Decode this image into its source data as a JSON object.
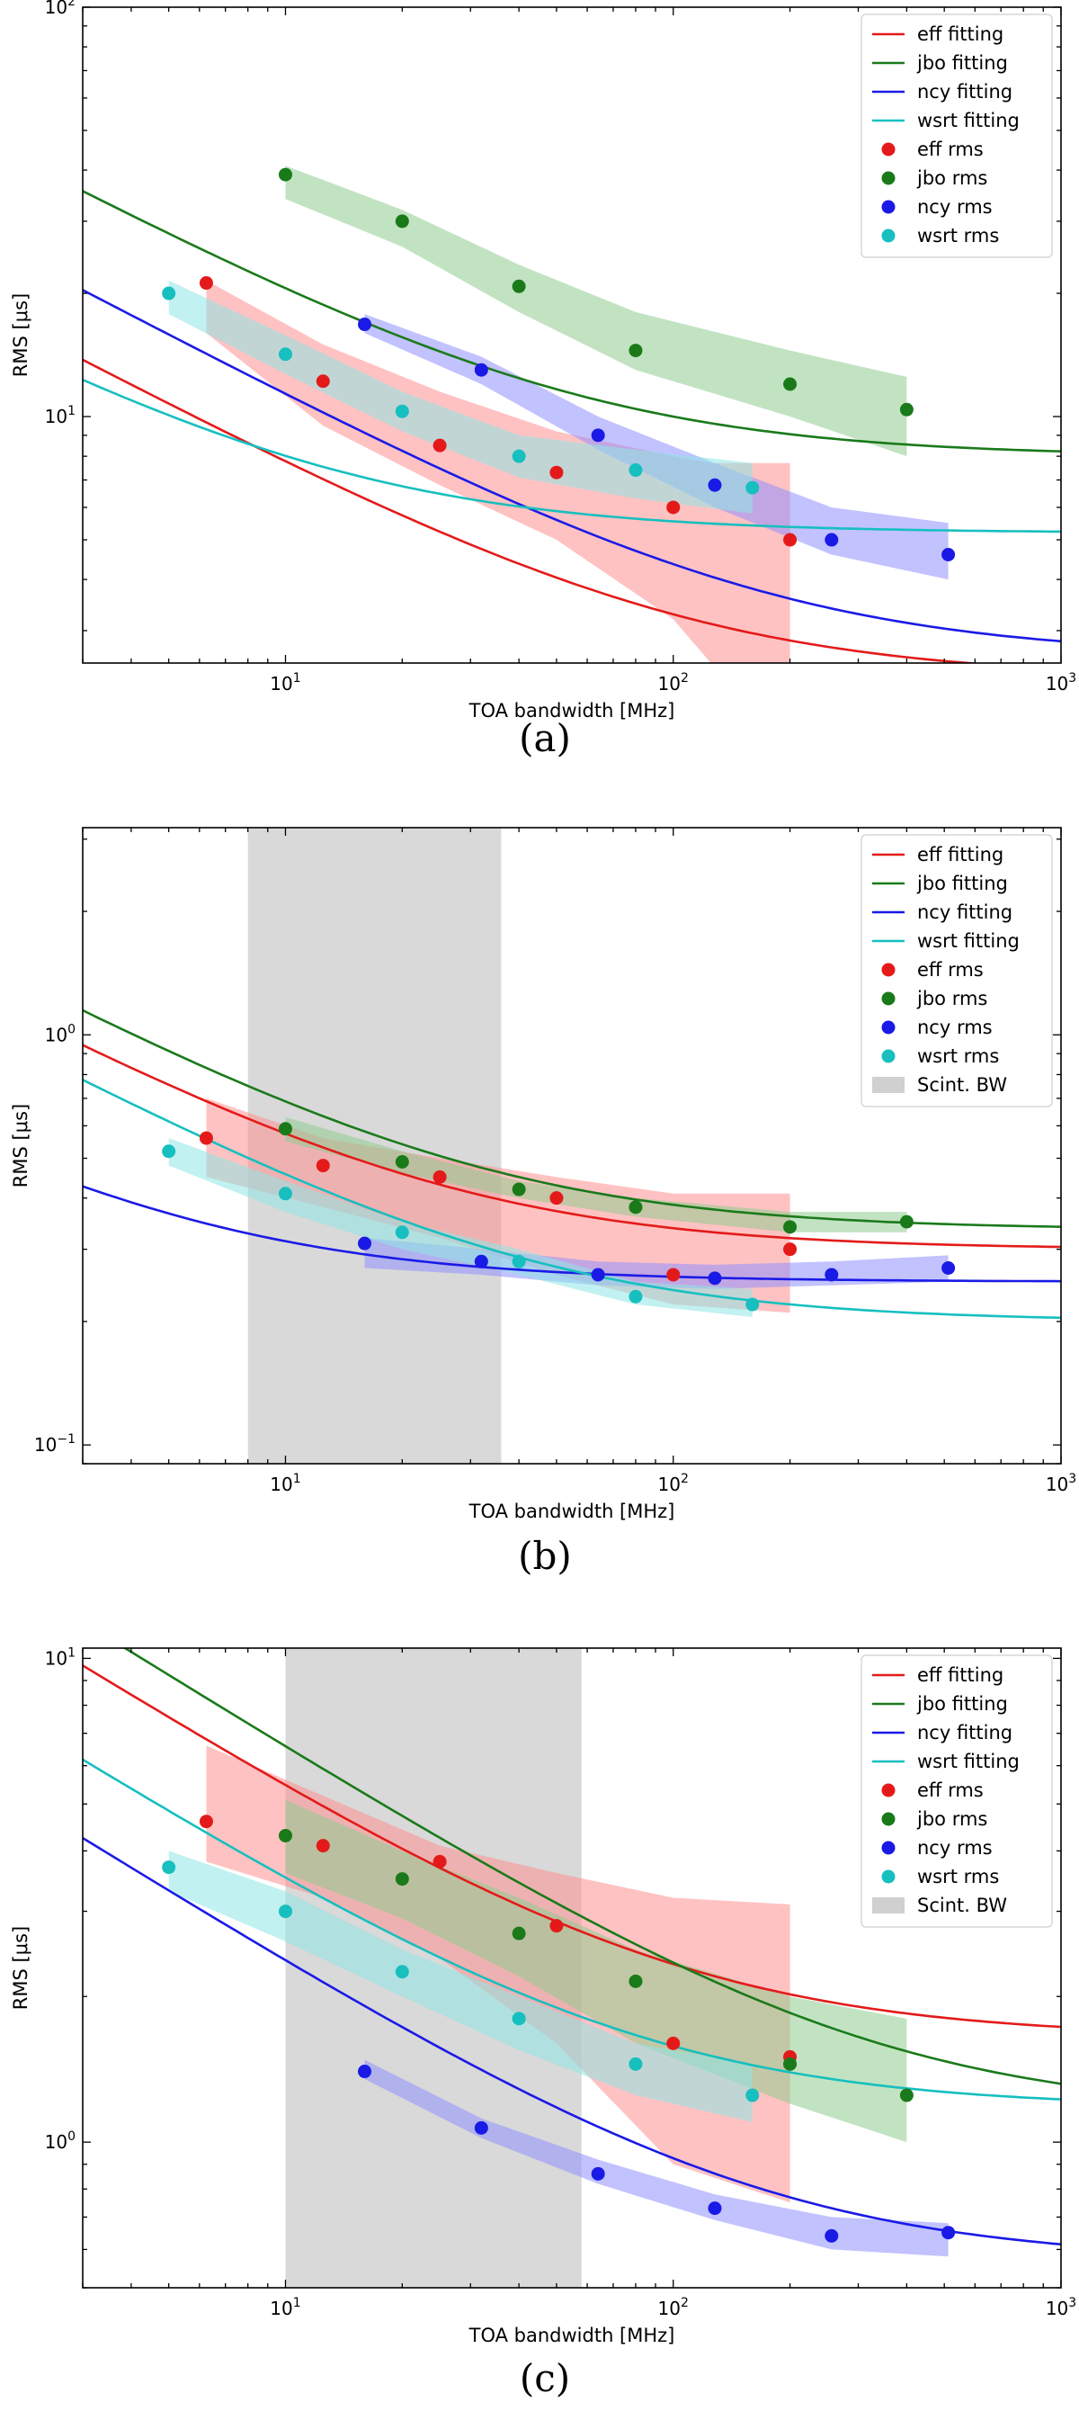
{
  "figure": {
    "colors": {
      "eff": "#e41a1a",
      "jbo": "#1a7a1a",
      "ncy": "#1a1ae6",
      "wsrt": "#17bfbf",
      "eff_fill": "#ff9090",
      "jbo_fill": "#90cc90",
      "ncy_fill": "#9090ff",
      "wsrt_fill": "#90e6e6",
      "scint": "#d0d0d0"
    }
  },
  "chart_data": [
    {
      "panel": "a",
      "caption": "(a)",
      "type": "scatter",
      "xscale": "log",
      "yscale": "log",
      "xlim": [
        3,
        1000
      ],
      "ylim": [
        2.5,
        100
      ],
      "xlabel": "TOA bandwidth [MHz]",
      "ylabel": "RMS [μs]",
      "xticks": [
        {
          "v": 10,
          "b": "10",
          "e": "1"
        },
        {
          "v": 100,
          "b": "10",
          "e": "2"
        },
        {
          "v": 1000,
          "b": "10",
          "e": "3"
        }
      ],
      "yticks": [
        {
          "v": 10,
          "b": "10",
          "e": "1"
        },
        {
          "v": 100,
          "b": "10",
          "e": "2"
        }
      ],
      "legend_position": "top-right",
      "legend": [
        "eff fitting",
        "jbo fitting",
        "ncy fitting",
        "wsrt fitting",
        "eff rms",
        "jbo rms",
        "ncy rms",
        "wsrt rms"
      ],
      "scint_band": null,
      "series": [
        {
          "name": "eff",
          "x": [
            6.25,
            12.5,
            25,
            50,
            100,
            200
          ],
          "y": [
            21.2,
            12.2,
            8.5,
            7.3,
            6.0,
            5.0
          ],
          "band": {
            "x": [
              6.25,
              12.5,
              25,
              50,
              100,
              125,
              200
            ],
            "lo": [
              16.0,
              9.5,
              6.8,
              5.0,
              3.2,
              2.5,
              2.5
            ],
            "hi": [
              21.5,
              15.0,
              11.5,
              9.2,
              8.0,
              7.7,
              7.7
            ]
          },
          "fit": {
            "a": 2.3,
            "c": 23.5
          }
        },
        {
          "name": "jbo",
          "x": [
            10,
            20,
            40,
            80,
            200,
            400
          ],
          "y": [
            39.0,
            30.0,
            20.8,
            14.5,
            12.0,
            10.4
          ],
          "band": {
            "x": [
              10,
              20,
              40,
              80,
              200,
              400
            ],
            "lo": [
              34.0,
              26.0,
              18.0,
              13.0,
              10.0,
              8.0
            ],
            "hi": [
              41.0,
              32.0,
              23.5,
              18.0,
              14.5,
              12.5
            ]
          },
          "fit": {
            "a": 8.0,
            "c": 60.0
          }
        },
        {
          "name": "ncy",
          "x": [
            16,
            32,
            64,
            128,
            256,
            512
          ],
          "y": [
            16.8,
            13.0,
            9.0,
            6.8,
            5.0,
            4.6
          ],
          "band": {
            "x": [
              16,
              32,
              64,
              128,
              256,
              512
            ],
            "lo": [
              16.0,
              12.0,
              8.3,
              6.0,
              4.6,
              4.0
            ],
            "hi": [
              17.8,
              14.0,
              10.0,
              7.7,
              6.0,
              5.5
            ]
          },
          "fit": {
            "a": 2.6,
            "c": 35.0
          }
        },
        {
          "name": "wsrt",
          "x": [
            5,
            10,
            20,
            40,
            80,
            160
          ],
          "y": [
            20.0,
            14.2,
            10.3,
            8.0,
            7.4,
            6.7
          ],
          "band": {
            "x": [
              5,
              10,
              20,
              40,
              80,
              160
            ],
            "lo": [
              17.8,
              12.7,
              9.2,
              7.1,
              6.3,
              5.8
            ],
            "hi": [
              21.5,
              15.8,
              11.5,
              9.0,
              8.3,
              7.7
            ]
          },
          "fit": {
            "a": 5.2,
            "c": 19.3
          }
        }
      ]
    },
    {
      "panel": "b",
      "caption": "(b)",
      "type": "scatter",
      "xscale": "log",
      "yscale": "log",
      "xlim": [
        3,
        1000
      ],
      "ylim": [
        0.09,
        3.2
      ],
      "xlabel": "TOA bandwidth [MHz]",
      "ylabel": "RMS [μs]",
      "xticks": [
        {
          "v": 10,
          "b": "10",
          "e": "1"
        },
        {
          "v": 100,
          "b": "10",
          "e": "2"
        },
        {
          "v": 1000,
          "b": "10",
          "e": "3"
        }
      ],
      "yticks": [
        {
          "v": 0.1,
          "b": "10",
          "e": "−1"
        },
        {
          "v": 1,
          "b": "10",
          "e": "0"
        }
      ],
      "legend_position": "top-right",
      "legend": [
        "eff fitting",
        "jbo fitting",
        "ncy fitting",
        "wsrt fitting",
        "eff rms",
        "jbo rms",
        "ncy rms",
        "wsrt rms",
        "Scint. BW"
      ],
      "scint_band": [
        8,
        36
      ],
      "series": [
        {
          "name": "eff",
          "x": [
            6.25,
            12.5,
            25,
            50,
            100,
            200
          ],
          "y": [
            0.56,
            0.48,
            0.45,
            0.4,
            0.26,
            0.3
          ],
          "band": {
            "x": [
              6.25,
              12.5,
              25,
              50,
              100,
              200
            ],
            "lo": [
              0.45,
              0.38,
              0.32,
              0.26,
              0.22,
              0.21
            ],
            "hi": [
              0.7,
              0.56,
              0.5,
              0.45,
              0.41,
              0.41
            ]
          },
          "fit": {
            "a": 0.3,
            "c": 1.55
          }
        },
        {
          "name": "jbo",
          "x": [
            10,
            20,
            40,
            80,
            200,
            400
          ],
          "y": [
            0.59,
            0.49,
            0.42,
            0.38,
            0.34,
            0.35
          ],
          "band": {
            "x": [
              10,
              20,
              40,
              80,
              200,
              400
            ],
            "lo": [
              0.55,
              0.46,
              0.4,
              0.36,
              0.33,
              0.33
            ],
            "hi": [
              0.63,
              0.52,
              0.44,
              0.4,
              0.37,
              0.37
            ]
          },
          "fit": {
            "a": 0.335,
            "c": 1.9
          }
        },
        {
          "name": "ncy",
          "x": [
            16,
            32,
            64,
            128,
            256,
            512
          ],
          "y": [
            0.31,
            0.28,
            0.26,
            0.255,
            0.26,
            0.27
          ],
          "band": {
            "x": [
              16,
              32,
              64,
              128,
              256,
              512
            ],
            "lo": [
              0.27,
              0.26,
              0.245,
              0.24,
              0.245,
              0.25
            ],
            "hi": [
              0.32,
              0.3,
              0.28,
              0.275,
              0.28,
              0.29
            ]
          },
          "fit": {
            "a": 0.25,
            "c": 0.6
          }
        },
        {
          "name": "wsrt",
          "x": [
            5,
            10,
            20,
            40,
            80,
            160
          ],
          "y": [
            0.52,
            0.41,
            0.33,
            0.28,
            0.23,
            0.22
          ],
          "band": {
            "x": [
              5,
              10,
              20,
              40,
              80,
              160
            ],
            "lo": [
              0.48,
              0.37,
              0.3,
              0.26,
              0.22,
              0.205
            ],
            "hi": [
              0.56,
              0.44,
              0.35,
              0.3,
              0.25,
              0.24
            ]
          },
          "fit": {
            "a": 0.2,
            "c": 1.3
          }
        }
      ]
    },
    {
      "panel": "c",
      "caption": "(c)",
      "type": "scatter",
      "xscale": "log",
      "yscale": "log",
      "xlim": [
        3,
        1000
      ],
      "ylim": [
        0.5,
        10.5
      ],
      "xlabel": "TOA bandwidth [MHz]",
      "ylabel": "RMS [μs]",
      "xticks": [
        {
          "v": 10,
          "b": "10",
          "e": "1"
        },
        {
          "v": 100,
          "b": "10",
          "e": "2"
        },
        {
          "v": 1000,
          "b": "10",
          "e": "3"
        }
      ],
      "yticks": [
        {
          "v": 1,
          "b": "10",
          "e": "0"
        },
        {
          "v": 10,
          "b": "10",
          "e": "1"
        }
      ],
      "legend_position": "top-right",
      "legend": [
        "eff fitting",
        "jbo fitting",
        "ncy fitting",
        "wsrt fitting",
        "eff rms",
        "jbo rms",
        "ncy rms",
        "wsrt rms",
        "Scint. BW"
      ],
      "scint_band": [
        10,
        58
      ],
      "series": [
        {
          "name": "eff",
          "x": [
            6.25,
            12.5,
            25,
            50,
            100,
            200
          ],
          "y": [
            4.6,
            4.1,
            3.8,
            2.8,
            1.6,
            1.5
          ],
          "band": {
            "x": [
              6.25,
              12.5,
              25,
              50,
              100,
              200
            ],
            "lo": [
              3.8,
              3.2,
              2.4,
              1.6,
              0.9,
              0.75
            ],
            "hi": [
              6.6,
              5.2,
              4.1,
              3.6,
              3.2,
              3.1
            ]
          },
          "fit": {
            "a": 1.65,
            "c": 16.5
          }
        },
        {
          "name": "jbo",
          "x": [
            10,
            20,
            40,
            80,
            200,
            400
          ],
          "y": [
            4.3,
            3.5,
            2.7,
            2.15,
            1.45,
            1.25
          ],
          "band": {
            "x": [
              10,
              20,
              40,
              80,
              200,
              400
            ],
            "lo": [
              3.6,
              2.9,
              2.2,
              1.6,
              1.2,
              1.0
            ],
            "hi": [
              5.1,
              4.0,
              3.2,
              2.5,
              2.0,
              1.8
            ]
          },
          "fit": {
            "a": 1.15,
            "c": 20.5
          }
        },
        {
          "name": "ncy",
          "x": [
            16,
            32,
            64,
            128,
            256,
            512
          ],
          "y": [
            1.4,
            1.07,
            0.86,
            0.73,
            0.64,
            0.65
          ],
          "band": {
            "x": [
              16,
              32,
              64,
              128,
              256,
              512
            ],
            "lo": [
              1.35,
              1.02,
              0.82,
              0.69,
              0.6,
              0.58
            ],
            "hi": [
              1.48,
              1.12,
              0.92,
              0.78,
              0.7,
              0.68
            ]
          },
          "fit": {
            "a": 0.57,
            "c": 7.3
          }
        },
        {
          "name": "wsrt",
          "x": [
            5,
            10,
            20,
            40,
            80,
            160
          ],
          "y": [
            3.7,
            3.0,
            2.25,
            1.8,
            1.45,
            1.25
          ],
          "band": {
            "x": [
              5,
              10,
              20,
              40,
              80,
              160
            ],
            "lo": [
              3.3,
              2.6,
              2.0,
              1.55,
              1.25,
              1.1
            ],
            "hi": [
              4.0,
              3.3,
              2.5,
              2.0,
              1.6,
              1.45
            ]
          },
          "fit": {
            "a": 1.18,
            "c": 10.5
          }
        }
      ]
    }
  ]
}
